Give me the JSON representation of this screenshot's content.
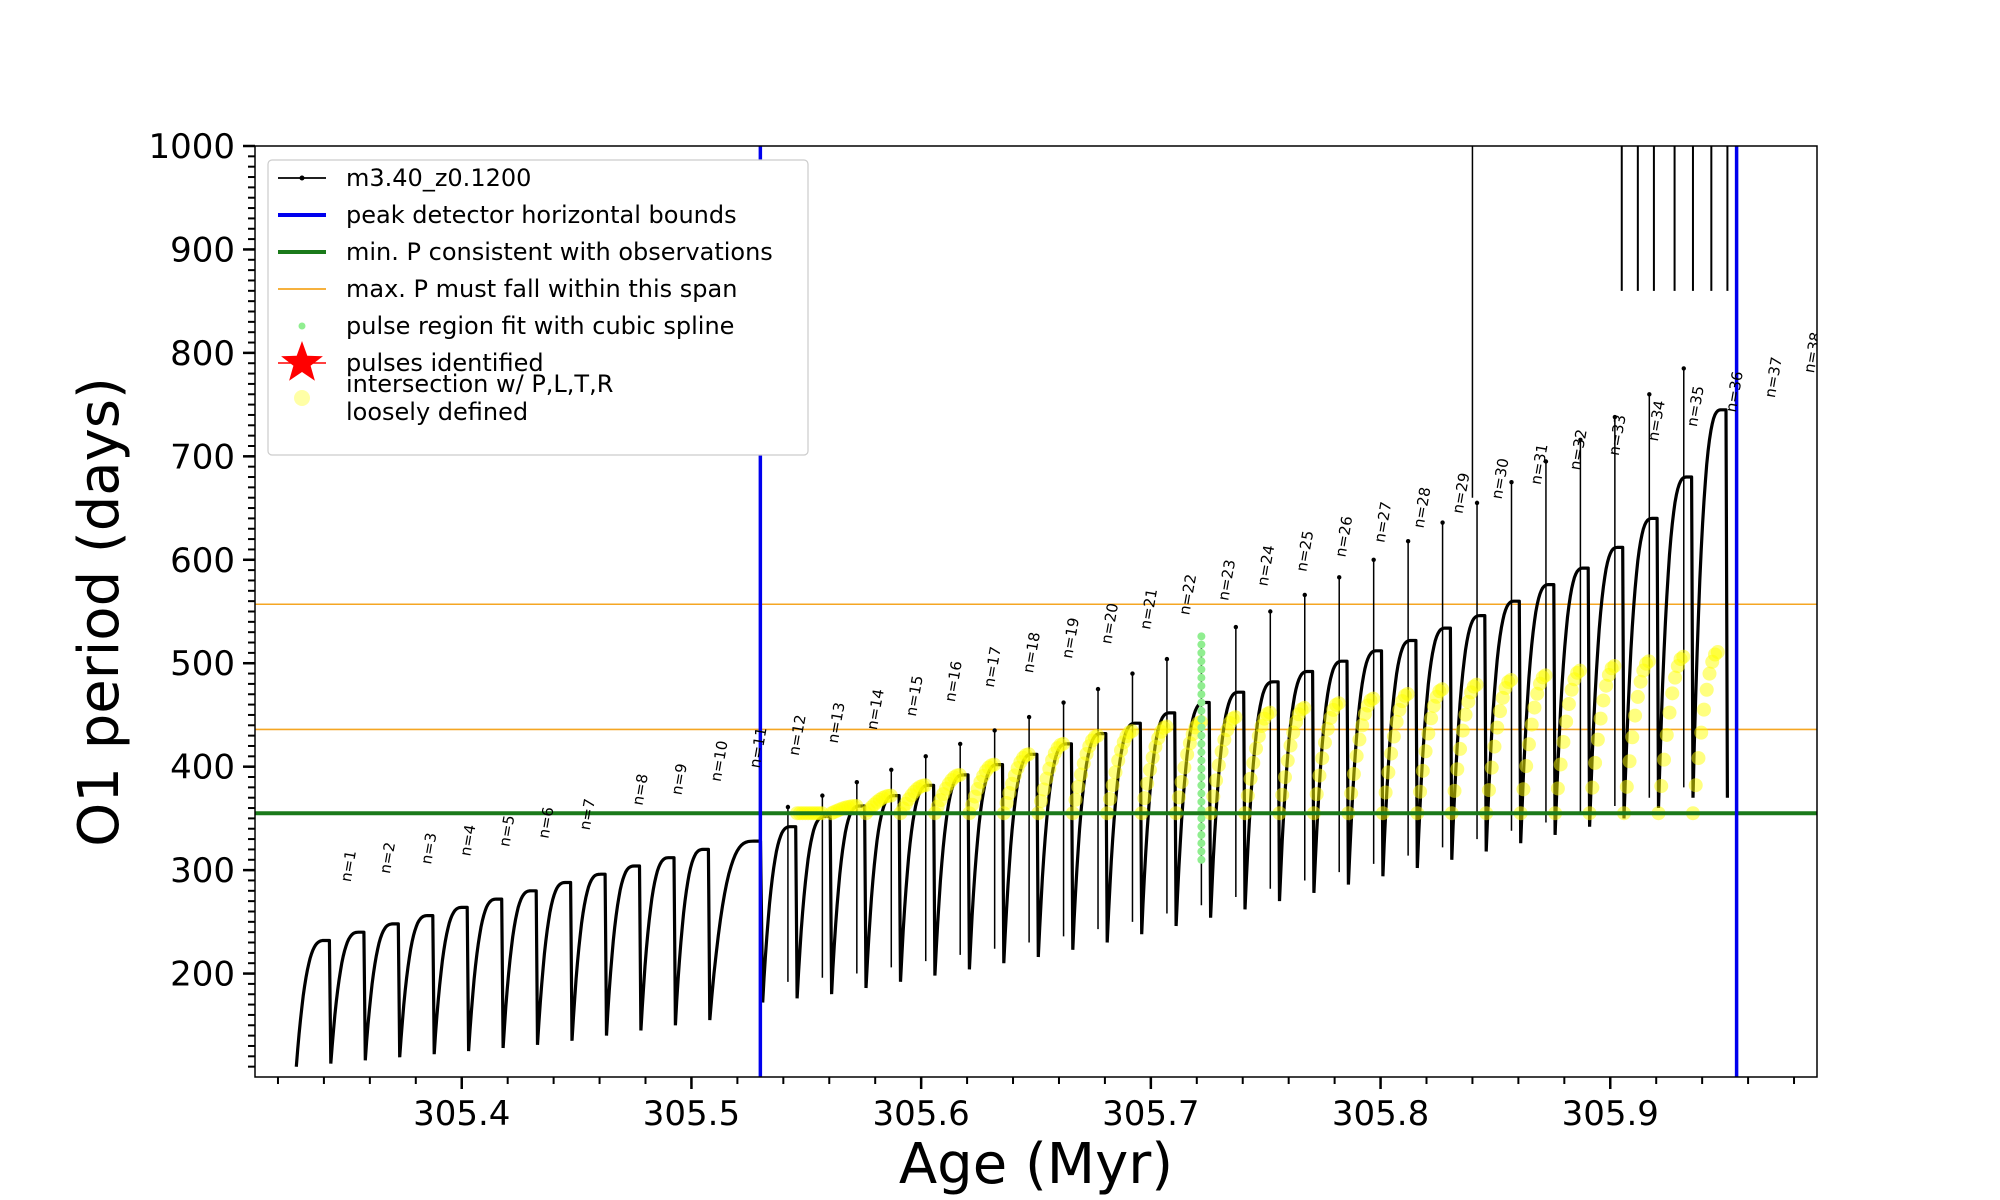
{
  "chart_data": {
    "type": "line",
    "title": "",
    "xlabel": "Age (Myr)",
    "ylabel": "O1 period (days)",
    "xlim": [
      305.31,
      305.99
    ],
    "ylim": [
      100,
      1000
    ],
    "xticks": [
      305.4,
      305.5,
      305.6,
      305.7,
      305.8,
      305.9
    ],
    "xtick_labels": [
      "305.4",
      "305.5",
      "305.6",
      "305.7",
      "305.8",
      "305.9"
    ],
    "yticks": [
      200,
      300,
      400,
      500,
      600,
      700,
      800,
      900,
      1000
    ],
    "ytick_labels": [
      "200",
      "300",
      "400",
      "500",
      "600",
      "700",
      "800",
      "900",
      "1000"
    ],
    "grid": false,
    "legend_position": "top-left",
    "legend": [
      {
        "label": "m3.40_z0.1200",
        "kind": "line-marker",
        "color": "#000000"
      },
      {
        "label": "peak detector horizontal bounds",
        "kind": "line",
        "color": "#0000ee"
      },
      {
        "label": "min. P consistent with observations",
        "kind": "line",
        "color": "#1a7a1a"
      },
      {
        "label": "max. P must fall within this span",
        "kind": "thin-line",
        "color": "#f5a623"
      },
      {
        "label": "pulse region fit with cubic spline",
        "kind": "dot",
        "color": "#90ee90"
      },
      {
        "label": "pulses identified",
        "kind": "star",
        "color": "#ff0000"
      },
      {
        "label": "intersection w/ P,L,T,R",
        "label2": "loosely defined",
        "kind": "circle",
        "color": "#ffff80"
      }
    ],
    "reference_lines": {
      "peak_bounds_x": [
        305.53,
        305.955
      ],
      "min_P": 355,
      "max_P_span": [
        436,
        557
      ],
      "black_vline_x": 305.84
    },
    "pulses": [
      {
        "n": 1,
        "age": 305.328,
        "p_min": 110,
        "p_max": 232
      },
      {
        "n": 2,
        "age": 305.343,
        "p_min": 113,
        "p_max": 240
      },
      {
        "n": 3,
        "age": 305.358,
        "p_min": 116,
        "p_max": 248
      },
      {
        "n": 4,
        "age": 305.373,
        "p_min": 119,
        "p_max": 256
      },
      {
        "n": 5,
        "age": 305.388,
        "p_min": 122,
        "p_max": 264
      },
      {
        "n": 6,
        "age": 305.403,
        "p_min": 125,
        "p_max": 272
      },
      {
        "n": 7,
        "age": 305.418,
        "p_min": 128,
        "p_max": 280
      },
      {
        "n": 8,
        "age": 305.433,
        "p_min": 131,
        "p_max": 288
      },
      {
        "n": 9,
        "age": 305.448,
        "p_min": 135,
        "p_max": 296
      },
      {
        "n": 10,
        "age": 305.463,
        "p_min": 140,
        "p_max": 304
      },
      {
        "n": 11,
        "age": 305.478,
        "p_min": 145,
        "p_max": 312
      },
      {
        "n": 12,
        "age": 305.493,
        "p_min": 150,
        "p_max": 320
      },
      {
        "n": 13,
        "age": 305.508,
        "p_min": 155,
        "p_max": 328
      },
      {
        "n": 14,
        "age": 305.531,
        "p_min": 172,
        "p_max": 342
      },
      {
        "n": 15,
        "age": 305.546,
        "p_min": 176,
        "p_max": 352
      },
      {
        "n": 16,
        "age": 305.561,
        "p_min": 180,
        "p_max": 362
      },
      {
        "n": 17,
        "age": 305.576,
        "p_min": 186,
        "p_max": 372
      },
      {
        "n": 18,
        "age": 305.591,
        "p_min": 192,
        "p_max": 382
      },
      {
        "n": 19,
        "age": 305.606,
        "p_min": 198,
        "p_max": 392
      },
      {
        "n": 20,
        "age": 305.621,
        "p_min": 204,
        "p_max": 402
      },
      {
        "n": 21,
        "age": 305.636,
        "p_min": 210,
        "p_max": 412
      },
      {
        "n": 22,
        "age": 305.651,
        "p_min": 216,
        "p_max": 422
      },
      {
        "n": 23,
        "age": 305.666,
        "p_min": 223,
        "p_max": 432
      },
      {
        "n": 24,
        "age": 305.681,
        "p_min": 230,
        "p_max": 442
      },
      {
        "n": 25,
        "age": 305.696,
        "p_min": 238,
        "p_max": 452
      },
      {
        "n": 26,
        "age": 305.711,
        "p_min": 246,
        "p_max": 462
      },
      {
        "n": 27,
        "age": 305.726,
        "p_min": 254,
        "p_max": 472
      },
      {
        "n": 28,
        "age": 305.741,
        "p_min": 262,
        "p_max": 482
      },
      {
        "n": 29,
        "age": 305.756,
        "p_min": 270,
        "p_max": 492
      },
      {
        "n": 30,
        "age": 305.771,
        "p_min": 278,
        "p_max": 502
      },
      {
        "n": 31,
        "age": 305.786,
        "p_min": 286,
        "p_max": 512
      },
      {
        "n": 32,
        "age": 305.801,
        "p_min": 294,
        "p_max": 522
      },
      {
        "n": 33,
        "age": 305.816,
        "p_min": 302,
        "p_max": 534
      },
      {
        "n": 34,
        "age": 305.831,
        "p_min": 310,
        "p_max": 546
      },
      {
        "n": 35,
        "age": 305.846,
        "p_min": 318,
        "p_max": 560
      },
      {
        "n": 36,
        "age": 305.861,
        "p_min": 326,
        "p_max": 576
      },
      {
        "n": 37,
        "age": 305.876,
        "p_min": 334,
        "p_max": 592
      },
      {
        "n": 38,
        "age": 305.891,
        "p_min": 342,
        "p_max": 612
      },
      {
        "n": 39,
        "age": 305.906,
        "p_min": 350,
        "p_max": 640
      },
      {
        "n": 40,
        "age": 305.921,
        "p_min": 360,
        "p_max": 680
      },
      {
        "n": 41,
        "age": 305.936,
        "p_min": 370,
        "p_max": 745
      }
    ],
    "spike_heights": [
      {
        "age": 305.542,
        "p": 361
      },
      {
        "age": 305.557,
        "p": 372
      },
      {
        "age": 305.572,
        "p": 385
      },
      {
        "age": 305.587,
        "p": 397
      },
      {
        "age": 305.602,
        "p": 410
      },
      {
        "age": 305.617,
        "p": 422
      },
      {
        "age": 305.632,
        "p": 435
      },
      {
        "age": 305.647,
        "p": 448
      },
      {
        "age": 305.662,
        "p": 462
      },
      {
        "age": 305.677,
        "p": 475
      },
      {
        "age": 305.692,
        "p": 490
      },
      {
        "age": 305.707,
        "p": 504
      },
      {
        "age": 305.722,
        "p": 519
      },
      {
        "age": 305.737,
        "p": 535
      },
      {
        "age": 305.752,
        "p": 550
      },
      {
        "age": 305.767,
        "p": 566
      },
      {
        "age": 305.782,
        "p": 583
      },
      {
        "age": 305.797,
        "p": 600
      },
      {
        "age": 305.812,
        "p": 618
      },
      {
        "age": 305.827,
        "p": 636
      },
      {
        "age": 305.842,
        "p": 655
      },
      {
        "age": 305.857,
        "p": 675
      },
      {
        "age": 305.872,
        "p": 695
      },
      {
        "age": 305.887,
        "p": 716
      },
      {
        "age": 305.902,
        "p": 738
      },
      {
        "age": 305.917,
        "p": 760
      },
      {
        "age": 305.932,
        "p": 785
      }
    ],
    "annotations": [
      {
        "text": "n=1",
        "age": 305.43,
        "p": 288
      },
      {
        "text": "n=2",
        "age": 305.447,
        "p": 296
      },
      {
        "text": "n=3",
        "age": 305.465,
        "p": 305
      },
      {
        "text": "n=4",
        "age": 305.482,
        "p": 313
      },
      {
        "text": "n=5",
        "age": 305.499,
        "p": 322
      },
      {
        "text": "n=6",
        "age": 305.516,
        "p": 330
      },
      {
        "text": "n=7",
        "age": 305.534,
        "p": 338
      },
      {
        "text": "n=8",
        "age": 305.557,
        "p": 362
      },
      {
        "text": "n=9",
        "age": 305.574,
        "p": 372
      },
      {
        "text": "n=10",
        "age": 305.591,
        "p": 385
      },
      {
        "text": "n=11",
        "age": 305.608,
        "p": 398
      },
      {
        "text": "n=12",
        "age": 305.625,
        "p": 410
      },
      {
        "text": "n=13",
        "age": 305.642,
        "p": 422
      },
      {
        "text": "n=14",
        "age": 305.659,
        "p": 435
      },
      {
        "text": "n=15",
        "age": 305.676,
        "p": 448
      },
      {
        "text": "n=16",
        "age": 305.693,
        "p": 462
      },
      {
        "text": "n=17",
        "age": 305.71,
        "p": 476
      },
      {
        "text": "n=18",
        "age": 305.727,
        "p": 490
      },
      {
        "text": "n=19",
        "age": 305.744,
        "p": 504
      },
      {
        "text": "n=20",
        "age": 305.761,
        "p": 518
      },
      {
        "text": "n=21",
        "age": 305.778,
        "p": 532
      },
      {
        "text": "n=22",
        "age": 305.795,
        "p": 546
      },
      {
        "text": "n=23",
        "age": 305.812,
        "p": 560
      },
      {
        "text": "n=24",
        "age": 305.829,
        "p": 574
      },
      {
        "text": "n=25",
        "age": 305.846,
        "p": 588
      },
      {
        "text": "n=26",
        "age": 305.863,
        "p": 602
      },
      {
        "text": "n=27",
        "age": 305.88,
        "p": 616
      },
      {
        "text": "n=28",
        "age": 305.897,
        "p": 630
      },
      {
        "text": "n=29",
        "age": 305.914,
        "p": 644
      },
      {
        "text": "n=30",
        "age": 305.931,
        "p": 658
      },
      {
        "text": "n=31",
        "age": 305.948,
        "p": 672
      },
      {
        "text": "n=32",
        "age": 305.965,
        "p": 686
      },
      {
        "text": "n=33",
        "age": 305.982,
        "p": 700
      },
      {
        "text": "n=34",
        "age": 305.999,
        "p": 714
      },
      {
        "text": "n=35",
        "age": 306.016,
        "p": 728
      },
      {
        "text": "n=36",
        "age": 306.033,
        "p": 742
      },
      {
        "text": "n=37",
        "age": 306.05,
        "p": 756
      },
      {
        "text": "n=38",
        "age": 306.067,
        "p": 780
      }
    ],
    "spline_region": {
      "age": 305.722,
      "p_from": 310,
      "p_to": 528
    },
    "late_spikes": [
      305.905,
      305.912,
      305.919,
      305.928,
      305.936,
      305.944,
      305.951
    ]
  }
}
